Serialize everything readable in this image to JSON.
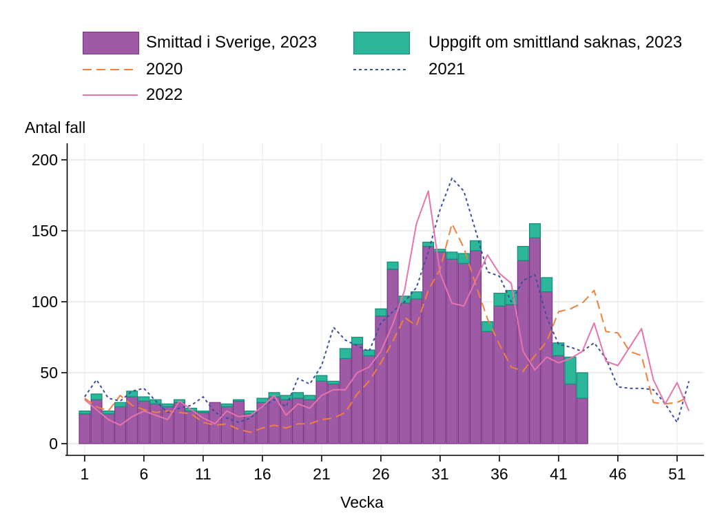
{
  "legend": {
    "items": [
      {
        "label": "Smittad i Sverige, 2023",
        "swatch": "box",
        "color": "#9f5aa5",
        "border": "#7b3585"
      },
      {
        "label": "Uppgift om smittland saknas, 2023",
        "swatch": "box",
        "color": "#2cb69a",
        "border": "#128c74"
      },
      {
        "label": "2020",
        "swatch": "line",
        "color": "#f0813c",
        "dash": "13 7"
      },
      {
        "label": "2021",
        "swatch": "line",
        "color": "#3a4e9f",
        "dash": "4 4"
      },
      {
        "label": "2022",
        "swatch": "line",
        "color": "#e873ac",
        "dash": ""
      }
    ]
  },
  "chart_data": {
    "type": "combo",
    "title": "",
    "xlabel": "Vecka",
    "ylabel": "Antal fall",
    "ylim": [
      0,
      210
    ],
    "yticks": [
      0,
      50,
      100,
      150,
      200
    ],
    "xticks": [
      1,
      6,
      11,
      16,
      21,
      26,
      31,
      36,
      41,
      46,
      51
    ],
    "weeks": [
      1,
      2,
      3,
      4,
      5,
      6,
      7,
      8,
      9,
      10,
      11,
      12,
      13,
      14,
      15,
      16,
      17,
      18,
      19,
      20,
      21,
      22,
      23,
      24,
      25,
      26,
      27,
      28,
      29,
      30,
      31,
      32,
      33,
      34,
      35,
      36,
      37,
      38,
      39,
      40,
      41,
      42,
      43,
      44,
      45,
      46,
      47,
      48,
      49,
      50,
      51,
      52
    ],
    "grid": true,
    "legend_position": "top",
    "series": [
      {
        "name": "Smittad i Sverige, 2023",
        "type": "bar",
        "stack": "2023",
        "color": "#9f5aa5",
        "border": "#7b3585",
        "values": [
          21,
          31,
          21,
          26,
          33,
          30,
          28,
          26,
          29,
          23,
          22,
          29,
          26,
          30,
          21,
          29,
          33,
          31,
          32,
          31,
          44,
          42,
          60,
          70,
          62,
          90,
          123,
          99,
          102,
          139,
          135,
          130,
          127,
          136,
          79,
          97,
          98,
          129,
          145,
          107,
          62,
          42,
          32,
          0,
          0,
          0,
          0,
          0,
          0,
          0,
          0,
          0
        ]
      },
      {
        "name": "Uppgift om smittland saknas, 2023",
        "type": "bar",
        "stack": "2023",
        "color": "#2cb69a",
        "border": "#128c74",
        "values": [
          2,
          4,
          2,
          3,
          4,
          3,
          3,
          2,
          2,
          2,
          1,
          0,
          2,
          1,
          2,
          3,
          3,
          3,
          4,
          3,
          4,
          2,
          7,
          5,
          4,
          5,
          5,
          5,
          5,
          3,
          2,
          5,
          7,
          7,
          7,
          9,
          10,
          10,
          10,
          10,
          9,
          19,
          18,
          0,
          0,
          0,
          0,
          0,
          0,
          0,
          0,
          0
        ]
      },
      {
        "name": "2020",
        "type": "line",
        "line_style": "dashed-long",
        "color": "#f0813c",
        "values": [
          32,
          26,
          23,
          34,
          27,
          24,
          22,
          23,
          22,
          21,
          15,
          13,
          14,
          10,
          8,
          11,
          13,
          11,
          14,
          14,
          17,
          18,
          22,
          35,
          44,
          57,
          72,
          89,
          83,
          108,
          123,
          155,
          138,
          112,
          88,
          70,
          54,
          51,
          62,
          72,
          93,
          95,
          99,
          108,
          79,
          78,
          65,
          62,
          29,
          28,
          29,
          33
        ]
      },
      {
        "name": "2021",
        "type": "line",
        "line_style": "dashed-short",
        "color": "#3a4e9f",
        "values": [
          33,
          45,
          32,
          30,
          37,
          39,
          30,
          22,
          25,
          27,
          33,
          22,
          18,
          15,
          18,
          26,
          31,
          26,
          46,
          42,
          55,
          82,
          73,
          69,
          65,
          85,
          93,
          100,
          110,
          135,
          165,
          187,
          178,
          150,
          121,
          118,
          100,
          115,
          119,
          89,
          70,
          68,
          65,
          71,
          60,
          40,
          39,
          39,
          38,
          28,
          15,
          44
        ]
      },
      {
        "name": "2022",
        "type": "line",
        "line_style": "solid",
        "color": "#e873ac",
        "values": [
          31,
          24,
          17,
          13,
          19,
          23,
          20,
          17,
          30,
          24,
          18,
          14,
          23,
          19,
          20,
          26,
          34,
          20,
          28,
          25,
          34,
          38,
          38,
          50,
          54,
          65,
          84,
          108,
          155,
          178,
          120,
          99,
          97,
          115,
          133,
          120,
          113,
          65,
          52,
          61,
          57,
          60,
          65,
          85,
          58,
          55,
          68,
          81,
          45,
          28,
          43,
          23
        ]
      }
    ],
    "colors": {
      "axis": "#000000",
      "grid_h": "#e7e7e7",
      "grid_v": "#efefef",
      "background": "#ffffff"
    }
  }
}
